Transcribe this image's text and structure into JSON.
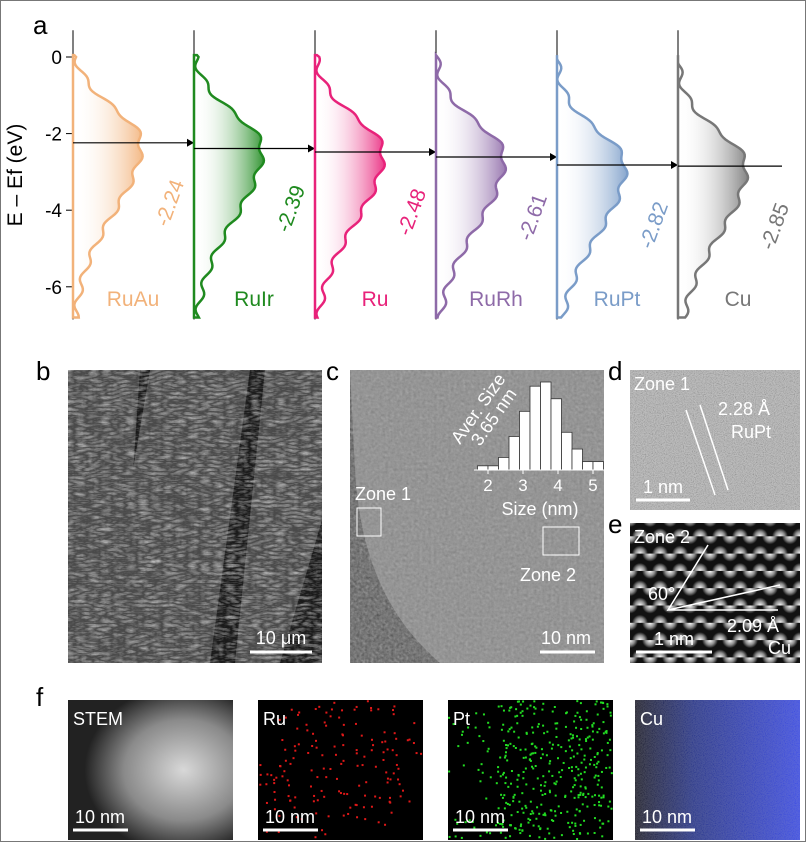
{
  "chart_data": [
    {
      "type": "dband",
      "panel": "a",
      "ylabel": "E – Ef (eV)",
      "ylim": [
        -6.8,
        0.7
      ],
      "yticks": [
        -6,
        -4,
        -2,
        0
      ],
      "series": [
        {
          "name": "RuAu",
          "color": "#f2b27a",
          "values": [
            -2.24
          ]
        },
        {
          "name": "RuIr",
          "color": "#1f8a1f",
          "values": [
            -2.39
          ]
        },
        {
          "name": "Ru",
          "color": "#e8227a",
          "values": [
            -2.48
          ]
        },
        {
          "name": "RuRh",
          "color": "#8e6aa8",
          "values": [
            -2.61
          ]
        },
        {
          "name": "RuPt",
          "color": "#7a9cc8",
          "values": [
            -2.82
          ]
        },
        {
          "name": "Cu",
          "color": "#777777",
          "values": [
            -2.85
          ]
        }
      ]
    },
    {
      "type": "histogram",
      "xlabel": "Size (nm)",
      "title": "Aver. Size",
      "subtitle": "3.65 nm",
      "bins": [
        1.7,
        2.0,
        2.3,
        2.6,
        2.9,
        3.2,
        3.5,
        3.8,
        4.1,
        4.4,
        4.7,
        5.0,
        5.3
      ],
      "values": [
        1,
        1,
        3,
        8,
        14,
        20,
        21,
        17,
        9,
        5,
        2,
        2
      ],
      "xlim": [
        1.6,
        5.6
      ],
      "xticks": [
        2,
        3,
        4,
        5
      ],
      "color": "#ffffff"
    }
  ],
  "panels": {
    "b": {
      "label": "b",
      "scale_bar": "10 μm"
    },
    "c": {
      "label": "c",
      "zone1": "Zone 1",
      "zone2": "Zone 2",
      "scale_bar": "10 nm"
    },
    "d": {
      "label": "d",
      "zone": "Zone 1",
      "spacing": "2.28 Å",
      "phase": "RuPt",
      "scale_bar": "1 nm"
    },
    "e": {
      "label": "e",
      "zone": "Zone 2",
      "angle": "60°",
      "spacing": "2.09 Å",
      "phase": "Cu",
      "scale_bar": "1 nm"
    },
    "f": {
      "label": "f",
      "maps": [
        "STEM",
        "Ru",
        "Pt",
        "Cu"
      ],
      "scale_bar": "10 nm"
    }
  }
}
